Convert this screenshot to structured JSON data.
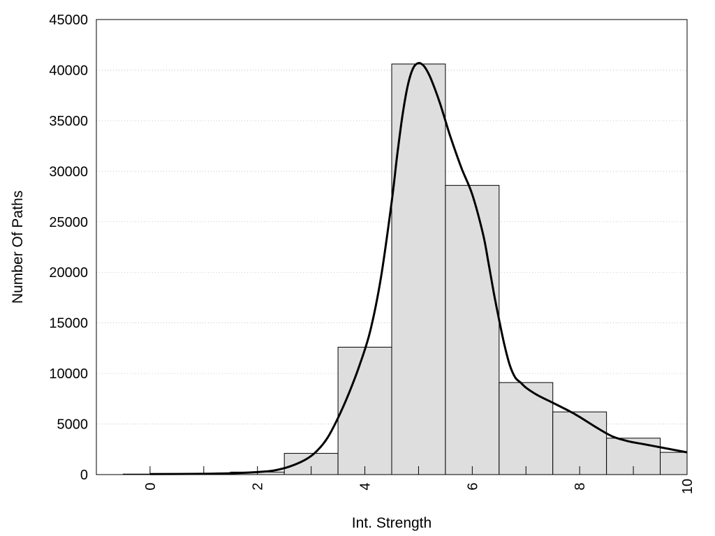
{
  "chart_data": {
    "type": "bar",
    "xlabel": "Int. Strength",
    "ylabel": "Number Of Paths",
    "xlim": [
      -1,
      10
    ],
    "ylim": [
      0,
      45000
    ],
    "x_ticks": [
      0,
      2,
      4,
      6,
      8,
      10
    ],
    "y_ticks": [
      0,
      5000,
      10000,
      15000,
      20000,
      25000,
      30000,
      35000,
      40000,
      45000
    ],
    "grid": "horizontal-dotted",
    "bin_width": 1,
    "bars": [
      {
        "x": 0,
        "value": 50
      },
      {
        "x": 1,
        "value": 100
      },
      {
        "x": 2,
        "value": 250
      },
      {
        "x": 3,
        "value": 2100
      },
      {
        "x": 4,
        "value": 12600
      },
      {
        "x": 5,
        "value": 40600
      },
      {
        "x": 6,
        "value": 28600
      },
      {
        "x": 7,
        "value": 9100
      },
      {
        "x": 8,
        "value": 6200
      },
      {
        "x": 9,
        "value": 3600
      },
      {
        "x": 10,
        "value": 2200
      }
    ],
    "curve": {
      "x": [
        0,
        1,
        1.5,
        2,
        2.3,
        2.6,
        2.9,
        3.1,
        3.3,
        3.5,
        3.7,
        3.9,
        4.1,
        4.3,
        4.5,
        4.6,
        4.7,
        4.8,
        4.9,
        5.0,
        5.1,
        5.2,
        5.3,
        5.4,
        5.5,
        5.6,
        5.8,
        6.0,
        6.2,
        6.3,
        6.4,
        6.5,
        6.6,
        6.7,
        6.8,
        6.9,
        7.0,
        7.2,
        7.5,
        7.8,
        8.0,
        8.3,
        8.6,
        8.9,
        9.2,
        9.5,
        9.8,
        10.0
      ],
      "y": [
        50,
        80,
        130,
        250,
        400,
        800,
        1500,
        2300,
        3600,
        5600,
        8000,
        10800,
        14200,
        19500,
        27000,
        31500,
        35500,
        38500,
        40200,
        40700,
        40400,
        39500,
        38200,
        36700,
        35000,
        33300,
        30300,
        27700,
        23800,
        21000,
        18000,
        15300,
        12800,
        10800,
        9600,
        9100,
        8600,
        7900,
        7100,
        6300,
        5700,
        4700,
        3800,
        3300,
        3000,
        2700,
        2400,
        2200
      ]
    }
  }
}
